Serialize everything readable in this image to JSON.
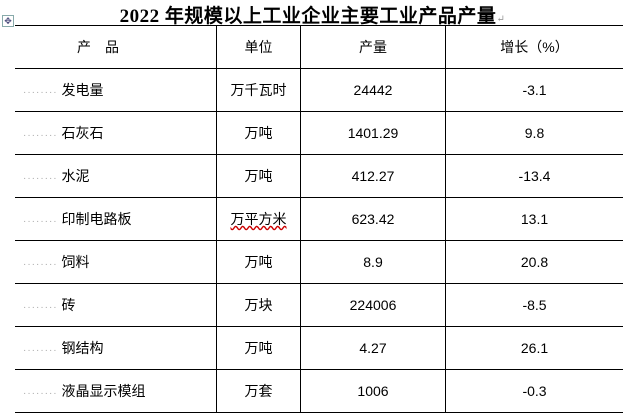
{
  "title": "2022 年规模以上工业企业主要工业产品产量",
  "headers": {
    "product": "产　品",
    "unit": "单位",
    "output": "产量",
    "growth": "增长（%）"
  },
  "rows": [
    {
      "product": "发电量",
      "unit": "万千瓦时",
      "output": "24442",
      "growth": "-3.1"
    },
    {
      "product": "石灰石",
      "unit": "万吨",
      "output": "1401.29",
      "growth": "9.8"
    },
    {
      "product": "水泥",
      "unit": "万吨",
      "output": "412.27",
      "growth": "-13.4"
    },
    {
      "product": "印制电路板",
      "unit": "万平方米",
      "output": "623.42",
      "growth": "13.1"
    },
    {
      "product": "饲料",
      "unit": "万吨",
      "output": "8.9",
      "growth": "20.8"
    },
    {
      "product": "砖",
      "unit": "万块",
      "output": "224006",
      "growth": "-8.5"
    },
    {
      "product": "钢结构",
      "unit": "万吨",
      "output": "4.27",
      "growth": "26.1"
    },
    {
      "product": "液晶显示模组",
      "unit": "万套",
      "output": "1006",
      "growth": "-0.3"
    }
  ]
}
